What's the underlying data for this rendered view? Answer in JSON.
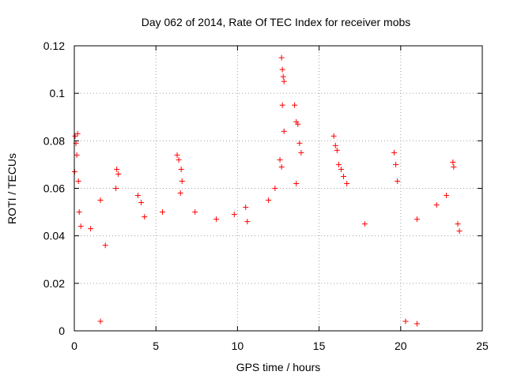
{
  "chart_data": {
    "type": "scatter",
    "title": "Day 062 of 2014, Rate Of TEC Index for receiver mobs",
    "xlabel": "GPS time / hours",
    "ylabel": "ROTI / TECUs",
    "xlim": [
      0,
      25
    ],
    "ylim": [
      0,
      0.12
    ],
    "xticks": [
      0,
      5,
      10,
      15,
      20,
      25
    ],
    "xtick_labels": [
      "0",
      "5",
      "10",
      "15",
      "20",
      "25"
    ],
    "yticks": [
      0,
      0.02,
      0.04,
      0.06,
      0.08,
      0.1,
      0.12
    ],
    "ytick_labels": [
      "0",
      "0.02",
      "0.04",
      "0.06",
      "0.08",
      "0.1",
      "0.12"
    ],
    "grid": true,
    "marker": "+",
    "marker_color": "#ff0000",
    "series": [
      {
        "name": "ROTI",
        "points": [
          [
            0.05,
            0.082
          ],
          [
            0.1,
            0.079
          ],
          [
            0.15,
            0.074
          ],
          [
            0.2,
            0.083
          ],
          [
            0.25,
            0.063
          ],
          [
            0.3,
            0.05
          ],
          [
            0.02,
            0.067
          ],
          [
            0.4,
            0.044
          ],
          [
            1.0,
            0.043
          ],
          [
            1.6,
            0.055
          ],
          [
            1.9,
            0.036
          ],
          [
            2.6,
            0.068
          ],
          [
            2.7,
            0.066
          ],
          [
            2.55,
            0.06
          ],
          [
            3.9,
            0.057
          ],
          [
            4.1,
            0.054
          ],
          [
            4.3,
            0.048
          ],
          [
            5.4,
            0.05
          ],
          [
            6.3,
            0.074
          ],
          [
            6.4,
            0.072
          ],
          [
            6.55,
            0.068
          ],
          [
            6.6,
            0.063
          ],
          [
            6.5,
            0.058
          ],
          [
            7.4,
            0.05
          ],
          [
            8.7,
            0.047
          ],
          [
            9.8,
            0.049
          ],
          [
            10.5,
            0.052
          ],
          [
            10.6,
            0.046
          ],
          [
            11.9,
            0.055
          ],
          [
            12.3,
            0.06
          ],
          [
            12.7,
            0.115
          ],
          [
            12.75,
            0.11
          ],
          [
            12.8,
            0.107
          ],
          [
            12.85,
            0.105
          ],
          [
            12.75,
            0.095
          ],
          [
            12.85,
            0.084
          ],
          [
            12.6,
            0.072
          ],
          [
            12.7,
            0.069
          ],
          [
            13.5,
            0.095
          ],
          [
            13.6,
            0.088
          ],
          [
            13.7,
            0.087
          ],
          [
            13.8,
            0.079
          ],
          [
            13.9,
            0.075
          ],
          [
            13.6,
            0.062
          ],
          [
            15.9,
            0.082
          ],
          [
            16.0,
            0.078
          ],
          [
            16.1,
            0.076
          ],
          [
            16.2,
            0.07
          ],
          [
            16.35,
            0.068
          ],
          [
            16.5,
            0.065
          ],
          [
            16.7,
            0.062
          ],
          [
            17.8,
            0.045
          ],
          [
            19.6,
            0.075
          ],
          [
            19.7,
            0.07
          ],
          [
            19.8,
            0.063
          ],
          [
            21.0,
            0.047
          ],
          [
            22.2,
            0.053
          ],
          [
            22.8,
            0.057
          ],
          [
            23.2,
            0.071
          ],
          [
            23.25,
            0.069
          ],
          [
            23.5,
            0.045
          ],
          [
            23.6,
            0.042
          ],
          [
            21.0,
            0.003
          ],
          [
            20.3,
            0.004
          ],
          [
            1.6,
            0.004
          ]
        ]
      }
    ]
  }
}
